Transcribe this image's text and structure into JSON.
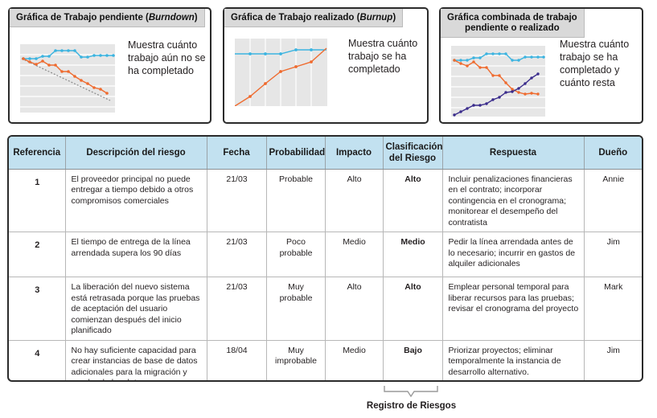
{
  "cards": [
    {
      "title_main": "Gráfica de Trabajo pendiente (",
      "title_italic": "Burndown",
      "title_end": ")",
      "text": [
        "Muestra cuánto",
        "trabajo aún no se",
        "ha completado"
      ]
    },
    {
      "title_main": "Gráfica de Trabajo realizado (",
      "title_italic": "Burnup",
      "title_end": ")",
      "text": [
        "Muestra cuánto",
        "trabajo se ha",
        "completado"
      ]
    },
    {
      "title_line1": "Gráfica combinada de trabajo",
      "title_line2": "pendiente o realizado",
      "text": [
        "Muestra cuánto",
        "trabajo se ha",
        "completado y",
        "cuánto resta"
      ]
    }
  ],
  "colors": {
    "scope_line": "#3bb4e0",
    "burn_line": "#ef6b2f",
    "ideal_line": "#8a8a8a",
    "done_line": "#3a2c8c",
    "chart_bg": "#e6e6e6",
    "header_bg": "#c2e1f0"
  },
  "table": {
    "headers": {
      "ref": "Referencia",
      "desc": "Descripción del riesgo",
      "date": "Fecha",
      "prob": "Probabilidad",
      "impact": "Impacto",
      "class1": "Clasificación",
      "class2": "del Riesgo",
      "resp": "Respuesta",
      "owner": "Dueño"
    },
    "rows": [
      {
        "ref": "1",
        "desc": "El proveedor principal no puede entregar a tiempo debido a otros compromisos comerciales",
        "date": "21/03",
        "prob": "Probable",
        "impact": "Alto",
        "class": "Alto",
        "resp": "Incluir penalizaciones financieras en el contrato; incorporar contingencia en el cronograma; monitorear el desempeño del contratista",
        "owner": "Annie"
      },
      {
        "ref": "2",
        "desc": "El tiempo de entrega de la línea arrendada supera los 90 días",
        "date": "21/03",
        "prob": "Poco probable",
        "impact": "Medio",
        "class": "Medio",
        "resp": "Pedir la línea arrendada antes de lo necesario; incurrir en gastos de alquiler adicionales",
        "owner": "Jim"
      },
      {
        "ref": "3",
        "desc": "La liberación del nuevo sistema está retrasada porque las pruebas de aceptación del usuario comienzan después del inicio planificado",
        "date": "21/03",
        "prob": "Muy probable",
        "impact": "Alto",
        "class": "Alto",
        "resp": "Emplear personal temporal para liberar recursos para las pruebas; revisar el cronograma del proyecto",
        "owner": "Mark"
      },
      {
        "ref": "4",
        "desc": "No hay suficiente capacidad para crear instancias de base de datos adicionales para la migración y prueba de los datos",
        "date": "18/04",
        "prob": "Muy improbable",
        "impact": "Medio",
        "class": "Bajo",
        "resp": "Priorizar proyectos; eliminar temporalmente la instancia de desarrollo alternativo.",
        "owner": "Jim"
      }
    ]
  },
  "caption": "Registro de Riesgos"
}
